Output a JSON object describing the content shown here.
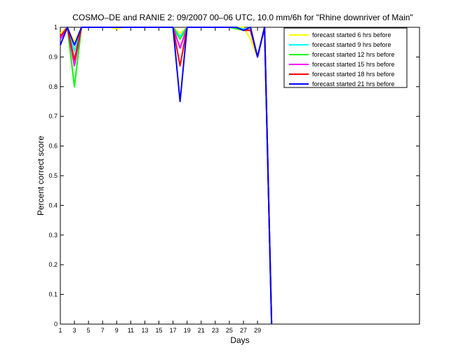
{
  "chart_data": {
    "type": "line",
    "title": "COSMO–DE and RANIE 2: 09/2007 00–06 UTC, 10.0 mm/6h for \"Rhine downriver of Main\"",
    "xlabel": "Days",
    "ylabel": "Percent correct score",
    "xlim": [
      1,
      52
    ],
    "ylim": [
      0,
      1
    ],
    "xticks": [
      1,
      3,
      5,
      7,
      9,
      11,
      13,
      15,
      17,
      19,
      21,
      23,
      25,
      27,
      29
    ],
    "yticks": [
      0,
      0.1,
      0.2,
      0.3,
      0.4,
      0.5,
      0.6,
      0.7,
      0.8,
      0.9,
      1
    ],
    "ytick_labels": [
      "0",
      "0.1",
      "0.2",
      "0.3",
      "0.4",
      "0.5",
      "0.6",
      "0.7",
      "0.8",
      "0.9",
      "1"
    ],
    "legend_position": "top-right",
    "x": [
      1,
      2,
      3,
      4,
      5,
      6,
      7,
      8,
      9,
      10,
      11,
      12,
      13,
      14,
      15,
      16,
      17,
      18,
      19,
      20,
      21,
      22,
      23,
      24,
      25,
      26,
      27,
      28,
      29,
      30,
      31
    ],
    "series": [
      {
        "name": "forecast started 6 hrs before",
        "color": "#ffff00",
        "values": [
          0.98,
          1,
          0.95,
          1,
          1,
          1,
          1,
          1,
          0.995,
          1,
          1,
          1,
          1,
          1,
          1,
          1,
          1,
          0.98,
          1,
          1,
          1,
          1,
          1,
          1,
          1,
          1,
          1,
          0.96,
          0.9,
          1,
          0
        ]
      },
      {
        "name": "forecast started 9 hrs before",
        "color": "#00ffff",
        "values": [
          0.97,
          1,
          0.92,
          1,
          1,
          1,
          1,
          1,
          1,
          1,
          1,
          1,
          1,
          1,
          1,
          1,
          1,
          0.97,
          1,
          1,
          1,
          1,
          1,
          1,
          1,
          1,
          0.995,
          0.99,
          0.9,
          1,
          0
        ]
      },
      {
        "name": "forecast started 12 hrs before",
        "color": "#00ff00",
        "values": [
          0.96,
          1,
          0.8,
          1,
          1,
          1,
          1,
          1,
          1,
          1,
          1,
          1,
          1,
          1,
          1,
          1,
          1,
          0.96,
          1,
          1,
          1,
          1,
          1,
          1,
          1,
          0.995,
          0.99,
          0.99,
          0.9,
          1,
          0
        ]
      },
      {
        "name": "forecast started 15 hrs before",
        "color": "#ff00ff",
        "values": [
          0.96,
          1,
          0.87,
          1,
          1,
          1,
          1,
          1,
          1,
          1,
          1,
          1,
          1,
          1,
          1,
          1,
          1,
          0.93,
          1,
          1,
          1,
          1,
          1,
          1,
          1,
          1,
          0.99,
          0.99,
          0.9,
          1,
          0
        ]
      },
      {
        "name": "forecast started 18 hrs before",
        "color": "#ff0000",
        "values": [
          0.97,
          1,
          0.89,
          1,
          1,
          1,
          1,
          1,
          1,
          1,
          1,
          1,
          1,
          1,
          1,
          1,
          1,
          0.87,
          1,
          1,
          1,
          1,
          1,
          1,
          1,
          1,
          0.99,
          0.99,
          0.9,
          1,
          0
        ]
      },
      {
        "name": "forecast started 21 hrs before",
        "color": "#0000ff",
        "values": [
          0.94,
          1,
          0.94,
          1,
          1,
          1,
          1,
          1,
          1,
          1,
          1,
          1,
          1,
          1,
          1,
          1,
          1,
          0.75,
          1,
          1,
          1,
          1,
          1,
          1,
          1,
          1,
          0.99,
          1,
          0.9,
          1,
          0
        ]
      }
    ]
  }
}
